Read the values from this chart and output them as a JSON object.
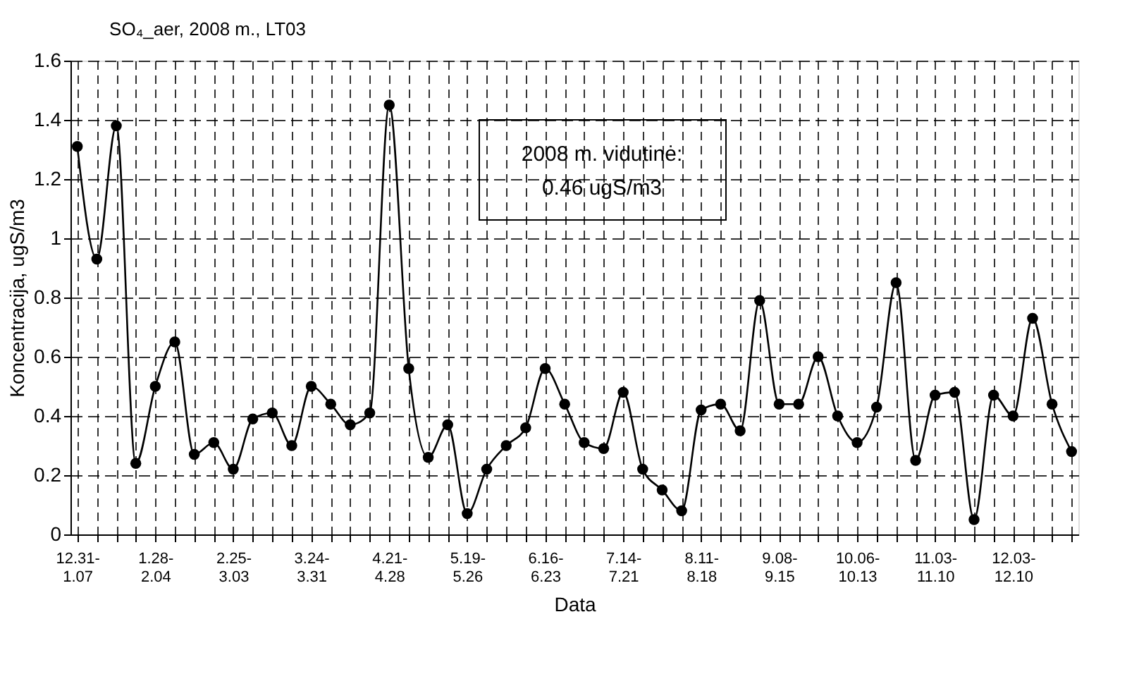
{
  "chart_data": {
    "type": "line",
    "title": "SO₄_aer, 2008 m., LT03",
    "xlabel": "Data",
    "ylabel": "Koncentracija, ugS/m3",
    "categories": [
      "12.31-1.07",
      null,
      null,
      null,
      "1.28-2.04",
      null,
      null,
      null,
      "2.25-3.03",
      null,
      null,
      null,
      "3.24-3.31",
      null,
      null,
      null,
      "4.21-4.28",
      null,
      null,
      null,
      "5.19-5.26",
      null,
      null,
      null,
      "6.16-6.23",
      null,
      null,
      null,
      "7.14-7.21",
      null,
      null,
      null,
      "8.11-8.18",
      null,
      null,
      null,
      "9.08-9.15",
      null,
      null,
      null,
      "10.06-10.13",
      null,
      null,
      null,
      "11.03-11.10",
      null,
      null,
      null,
      "12.03-12.10",
      null,
      null,
      null
    ],
    "series": [
      {
        "color": "#000000",
        "values": [
          1.31,
          0.93,
          1.38,
          0.24,
          0.5,
          0.65,
          0.27,
          0.31,
          0.22,
          0.39,
          0.41,
          0.3,
          0.5,
          0.44,
          0.37,
          0.41,
          1.45,
          0.56,
          0.26,
          0.37,
          0.07,
          0.22,
          0.3,
          0.36,
          0.56,
          0.44,
          0.31,
          0.29,
          0.48,
          0.22,
          0.15,
          0.08,
          0.42,
          0.44,
          0.35,
          0.79,
          0.44,
          0.44,
          0.6,
          0.4,
          0.31,
          0.43,
          0.85,
          0.25,
          0.47,
          0.48,
          0.05,
          0.47,
          0.4,
          0.73,
          0.44,
          0.28
        ]
      }
    ],
    "ylim": [
      0,
      1.6
    ],
    "yticks": [
      0,
      0.2,
      0.4,
      0.6,
      0.8,
      1,
      1.2,
      1.4,
      1.6
    ],
    "grid": true,
    "marker": "circle",
    "annotations": [
      "2008 m. vidutinė:\n0.46 ugS/m3"
    ]
  }
}
